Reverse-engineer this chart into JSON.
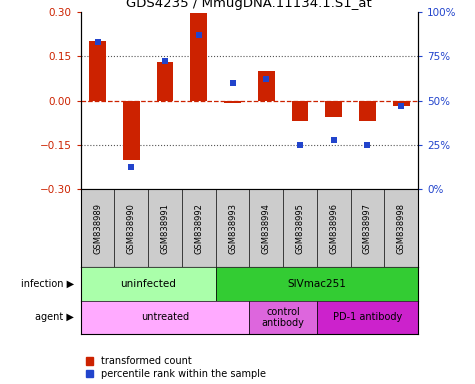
{
  "title": "GDS4235 / MmugDNA.11134.1.S1_at",
  "samples": [
    "GSM838989",
    "GSM838990",
    "GSM838991",
    "GSM838992",
    "GSM838993",
    "GSM838994",
    "GSM838995",
    "GSM838996",
    "GSM838997",
    "GSM838998"
  ],
  "red_values": [
    0.2,
    -0.2,
    0.13,
    0.295,
    -0.01,
    0.1,
    -0.07,
    -0.055,
    -0.07,
    -0.02
  ],
  "blue_percentile": [
    83,
    12.5,
    72,
    87,
    60,
    62,
    25,
    28,
    25,
    47
  ],
  "ylim": [
    -0.3,
    0.3
  ],
  "yticks_left": [
    -0.3,
    -0.15,
    0,
    0.15,
    0.3
  ],
  "yticks_right": [
    0,
    25,
    50,
    75,
    100
  ],
  "ytick_right_labels": [
    "0%",
    "25%",
    "50%",
    "75%",
    "100%"
  ],
  "red_color": "#cc2200",
  "blue_color": "#2244cc",
  "zero_line_color": "#cc2200",
  "dotted_line_color": "#555555",
  "infection_groups": [
    {
      "label": "uninfected",
      "start": 0,
      "end": 4,
      "color": "#aaffaa"
    },
    {
      "label": "SIVmac251",
      "start": 4,
      "end": 10,
      "color": "#33cc33"
    }
  ],
  "agent_groups": [
    {
      "label": "untreated",
      "start": 0,
      "end": 5,
      "color": "#ffaaff"
    },
    {
      "label": "control\nantibody",
      "start": 5,
      "end": 7,
      "color": "#dd66dd"
    },
    {
      "label": "PD-1 antibody",
      "start": 7,
      "end": 10,
      "color": "#cc22cc"
    }
  ],
  "sample_bg_color": "#cccccc",
  "legend_red": "transformed count",
  "legend_blue": "percentile rank within the sample",
  "bar_width": 0.5,
  "marker_size": 5
}
